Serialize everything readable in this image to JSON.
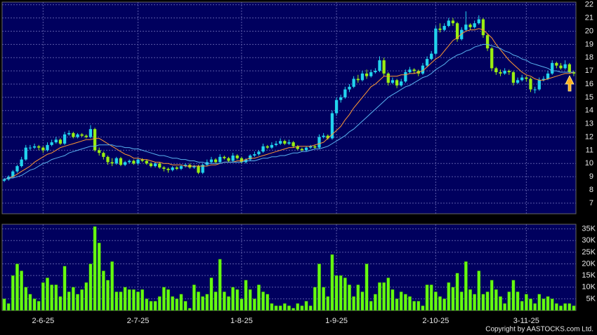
{
  "chart_data": {
    "type": "candlestick",
    "categories": [
      null,
      null,
      null,
      null,
      null,
      null,
      null,
      null,
      null,
      "2-6-25",
      null,
      null,
      null,
      null,
      null,
      null,
      null,
      null,
      null,
      null,
      null,
      null,
      null,
      null,
      null,
      null,
      null,
      null,
      null,
      null,
      null,
      "2-7-25",
      null,
      null,
      null,
      null,
      null,
      null,
      null,
      null,
      null,
      null,
      null,
      null,
      null,
      null,
      null,
      null,
      null,
      null,
      null,
      null,
      null,
      null,
      null,
      "1-8-25",
      null,
      null,
      null,
      null,
      null,
      null,
      null,
      null,
      null,
      null,
      null,
      null,
      null,
      null,
      null,
      null,
      null,
      null,
      null,
      null,
      null,
      "1-9-25",
      null,
      null,
      null,
      null,
      null,
      null,
      null,
      null,
      null,
      null,
      null,
      null,
      null,
      null,
      null,
      null,
      null,
      null,
      null,
      null,
      null,
      null,
      "2-10-25",
      null,
      null,
      null,
      null,
      null,
      null,
      null,
      null,
      null,
      null,
      null,
      null,
      null,
      null,
      null,
      null,
      null,
      null,
      null,
      null,
      "3-11-25",
      null,
      null,
      null,
      null,
      null,
      null,
      null,
      null,
      null,
      null,
      null
    ],
    "candles": [
      [
        8.7,
        8.9,
        8.6,
        8.8,
        5000,
        8.8,
        8.8
      ],
      [
        8.8,
        9.1,
        8.7,
        9.0,
        3000,
        8.9,
        8.9
      ],
      [
        9.0,
        9.5,
        8.9,
        9.4,
        15000,
        9.0,
        8.9
      ],
      [
        9.4,
        9.9,
        9.3,
        9.8,
        20000,
        9.2,
        9.0
      ],
      [
        9.8,
        10.5,
        9.7,
        10.3,
        17000,
        9.4,
        9.1
      ],
      [
        10.3,
        11.4,
        10.2,
        11.2,
        10000,
        9.6,
        9.3
      ],
      [
        11.2,
        11.4,
        11.0,
        11.2,
        7000,
        9.8,
        9.5
      ],
      [
        11.2,
        11.5,
        11.1,
        11.3,
        5000,
        10.1,
        9.6
      ],
      [
        11.3,
        11.4,
        11.0,
        11.2,
        4000,
        10.3,
        9.8
      ],
      [
        11.2,
        11.3,
        10.8,
        11.0,
        12000,
        10.5,
        10.0
      ],
      [
        11.0,
        11.6,
        10.9,
        11.4,
        14000,
        10.7,
        10.1
      ],
      [
        11.4,
        11.8,
        11.3,
        11.6,
        11000,
        10.8,
        10.3
      ],
      [
        11.6,
        12.0,
        11.5,
        11.8,
        11000,
        11.0,
        10.4
      ],
      [
        11.8,
        11.9,
        11.4,
        11.5,
        6000,
        11.2,
        10.5
      ],
      [
        11.5,
        12.4,
        11.4,
        12.2,
        19000,
        11.3,
        10.6
      ],
      [
        12.2,
        12.5,
        12.1,
        12.3,
        8000,
        11.4,
        10.8
      ],
      [
        12.3,
        12.4,
        11.9,
        12.0,
        10000,
        11.5,
        10.9
      ],
      [
        12.0,
        12.3,
        11.9,
        12.2,
        7000,
        11.6,
        11.0
      ],
      [
        12.2,
        12.3,
        12.0,
        12.1,
        9000,
        11.7,
        11.1
      ],
      [
        12.1,
        12.2,
        11.9,
        12.0,
        12000,
        11.8,
        11.2
      ],
      [
        12.0,
        12.9,
        11.9,
        12.6,
        20000,
        11.8,
        11.3
      ],
      [
        12.6,
        12.7,
        10.9,
        11.0,
        36000,
        11.9,
        11.3
      ],
      [
        11.0,
        11.2,
        10.6,
        10.8,
        29000,
        11.9,
        11.4
      ],
      [
        10.8,
        10.9,
        10.3,
        10.5,
        17000,
        11.7,
        11.4
      ],
      [
        10.5,
        10.6,
        9.9,
        10.1,
        13000,
        11.5,
        11.4
      ],
      [
        10.1,
        10.4,
        9.8,
        10.0,
        21000,
        11.3,
        11.4
      ],
      [
        10.0,
        10.5,
        9.9,
        10.4,
        8000,
        11.1,
        11.3
      ],
      [
        10.4,
        10.5,
        9.8,
        9.9,
        8000,
        10.9,
        11.3
      ],
      [
        9.9,
        10.2,
        9.8,
        10.1,
        10000,
        10.7,
        11.2
      ],
      [
        10.1,
        10.3,
        10.0,
        10.2,
        9000,
        10.6,
        11.2
      ],
      [
        10.2,
        10.3,
        9.9,
        10.0,
        9000,
        10.4,
        11.1
      ],
      [
        10.0,
        10.4,
        9.9,
        10.3,
        8000,
        10.4,
        11.1
      ],
      [
        10.3,
        10.4,
        10.1,
        10.2,
        9000,
        10.3,
        11.0
      ],
      [
        10.2,
        10.3,
        9.9,
        10.0,
        5000,
        10.3,
        10.9
      ],
      [
        10.0,
        10.1,
        9.7,
        9.8,
        4000,
        10.2,
        10.8
      ],
      [
        9.8,
        10.1,
        9.7,
        10.0,
        4000,
        10.1,
        10.7
      ],
      [
        10.0,
        10.1,
        9.6,
        9.7,
        6000,
        10.1,
        10.6
      ],
      [
        9.7,
        9.8,
        9.4,
        9.6,
        10000,
        10.0,
        10.6
      ],
      [
        9.6,
        9.7,
        9.3,
        9.5,
        9000,
        10.0,
        10.5
      ],
      [
        9.5,
        9.8,
        9.4,
        9.7,
        6000,
        9.9,
        10.4
      ],
      [
        9.7,
        9.8,
        9.5,
        9.6,
        5000,
        9.9,
        10.4
      ],
      [
        9.6,
        9.9,
        9.5,
        9.8,
        7000,
        9.9,
        10.3
      ],
      [
        9.8,
        10.0,
        9.7,
        9.9,
        4000,
        9.8,
        10.3
      ],
      [
        9.9,
        10.0,
        9.6,
        9.7,
        1000,
        9.8,
        10.2
      ],
      [
        9.7,
        9.9,
        9.6,
        9.8,
        11000,
        9.8,
        10.2
      ],
      [
        9.8,
        9.9,
        9.2,
        9.3,
        8000,
        9.8,
        10.1
      ],
      [
        9.3,
        10.0,
        9.2,
        9.9,
        6000,
        9.8,
        10.1
      ],
      [
        9.9,
        10.3,
        9.8,
        10.1,
        7000,
        9.8,
        10.0
      ],
      [
        10.1,
        10.5,
        10.0,
        10.3,
        14000,
        9.9,
        10.0
      ],
      [
        10.3,
        10.4,
        10.0,
        10.1,
        8000,
        9.9,
        10.0
      ],
      [
        10.1,
        10.7,
        10.0,
        10.5,
        22000,
        10.0,
        10.0
      ],
      [
        10.5,
        10.6,
        10.3,
        10.4,
        8000,
        10.1,
        10.1
      ],
      [
        10.4,
        10.5,
        10.1,
        10.2,
        6000,
        10.1,
        10.1
      ],
      [
        10.2,
        10.8,
        10.1,
        10.6,
        10000,
        10.1,
        10.1
      ],
      [
        10.6,
        10.7,
        10.3,
        10.4,
        9000,
        10.2,
        10.1
      ],
      [
        10.4,
        10.5,
        10.0,
        10.1,
        5000,
        10.2,
        10.1
      ],
      [
        10.1,
        10.4,
        10.0,
        10.3,
        13000,
        10.3,
        10.2
      ],
      [
        10.3,
        10.7,
        10.2,
        10.6,
        9000,
        10.4,
        10.2
      ],
      [
        10.6,
        10.9,
        10.5,
        10.7,
        5000,
        10.4,
        10.2
      ],
      [
        10.7,
        11.0,
        10.6,
        10.9,
        11000,
        10.5,
        10.3
      ],
      [
        10.9,
        11.5,
        10.8,
        11.3,
        8000,
        10.6,
        10.4
      ],
      [
        11.3,
        11.4,
        11.1,
        11.2,
        7000,
        10.7,
        10.4
      ],
      [
        11.2,
        11.6,
        11.1,
        11.4,
        3000,
        10.8,
        10.5
      ],
      [
        11.4,
        11.7,
        11.3,
        11.5,
        2000,
        10.9,
        10.5
      ],
      [
        11.5,
        11.9,
        11.4,
        11.7,
        2000,
        11.0,
        10.6
      ],
      [
        11.7,
        11.8,
        11.4,
        11.5,
        3000,
        11.1,
        10.6
      ],
      [
        11.5,
        11.8,
        11.4,
        11.6,
        2000,
        11.2,
        10.7
      ],
      [
        11.6,
        11.7,
        11.2,
        11.3,
        1000,
        11.2,
        10.8
      ],
      [
        11.3,
        11.4,
        11.0,
        11.1,
        3000,
        11.3,
        10.8
      ],
      [
        11.1,
        11.2,
        10.9,
        11.0,
        2000,
        11.3,
        10.9
      ],
      [
        11.0,
        11.3,
        10.9,
        11.2,
        4000,
        11.3,
        10.9
      ],
      [
        11.2,
        11.4,
        11.1,
        11.3,
        2000,
        11.3,
        11.0
      ],
      [
        11.3,
        11.4,
        11.1,
        11.2,
        10000,
        11.4,
        11.1
      ],
      [
        11.2,
        12.2,
        11.1,
        12.0,
        20000,
        11.5,
        11.1
      ],
      [
        12.0,
        12.3,
        11.9,
        12.1,
        10000,
        11.6,
        11.2
      ],
      [
        12.1,
        12.2,
        11.8,
        11.9,
        6000,
        11.9,
        11.3
      ],
      [
        11.9,
        14.0,
        11.8,
        13.8,
        24000,
        12.2,
        11.5
      ],
      [
        13.8,
        15.0,
        13.6,
        14.8,
        15000,
        12.5,
        11.7
      ],
      [
        14.8,
        15.2,
        14.6,
        15.0,
        15000,
        12.8,
        11.9
      ],
      [
        15.0,
        15.8,
        14.9,
        15.6,
        14000,
        13.3,
        12.1
      ],
      [
        15.6,
        16.0,
        15.4,
        15.8,
        11000,
        13.7,
        12.4
      ],
      [
        15.8,
        16.6,
        15.7,
        16.4,
        6000,
        14.2,
        12.6
      ],
      [
        16.4,
        16.7,
        16.1,
        16.3,
        11000,
        14.6,
        12.9
      ],
      [
        16.3,
        17.0,
        16.2,
        16.8,
        8000,
        15.0,
        13.2
      ],
      [
        16.8,
        17.1,
        16.4,
        16.6,
        20000,
        15.4,
        13.5
      ],
      [
        16.6,
        17.1,
        16.5,
        16.9,
        4000,
        15.8,
        13.8
      ],
      [
        16.9,
        17.2,
        16.8,
        17.0,
        7000,
        16.0,
        14.1
      ],
      [
        17.0,
        18.1,
        16.9,
        17.8,
        12000,
        16.3,
        14.4
      ],
      [
        17.8,
        18.0,
        16.6,
        16.8,
        12000,
        16.6,
        14.7
      ],
      [
        16.8,
        16.9,
        15.9,
        16.1,
        14000,
        16.6,
        15.0
      ],
      [
        16.1,
        16.5,
        16.0,
        16.3,
        9000,
        16.6,
        15.2
      ],
      [
        16.3,
        16.4,
        15.7,
        15.9,
        5000,
        16.6,
        15.4
      ],
      [
        15.9,
        16.4,
        15.8,
        16.2,
        8000,
        16.7,
        15.6
      ],
      [
        16.2,
        17.1,
        16.1,
        16.9,
        7000,
        16.7,
        15.8
      ],
      [
        16.9,
        17.3,
        16.8,
        17.1,
        6000,
        16.8,
        15.9
      ],
      [
        17.1,
        17.2,
        16.8,
        17.0,
        4000,
        16.8,
        16.1
      ],
      [
        17.0,
        17.1,
        16.6,
        16.8,
        4000,
        16.9,
        16.3
      ],
      [
        16.8,
        17.6,
        16.7,
        17.4,
        2000,
        17.0,
        16.5
      ],
      [
        17.4,
        18.1,
        17.3,
        17.9,
        11000,
        17.3,
        16.6
      ],
      [
        17.9,
        18.5,
        17.8,
        18.3,
        11000,
        17.6,
        16.8
      ],
      [
        18.3,
        20.4,
        18.2,
        20.2,
        8000,
        17.9,
        17.1
      ],
      [
        20.2,
        20.6,
        19.9,
        20.1,
        6000,
        18.1,
        17.3
      ],
      [
        20.1,
        20.6,
        20.0,
        20.4,
        5000,
        18.5,
        17.5
      ],
      [
        20.4,
        21.0,
        20.3,
        20.8,
        12000,
        18.9,
        17.8
      ],
      [
        20.8,
        21.0,
        20.4,
        20.6,
        10000,
        19.3,
        18.0
      ],
      [
        20.6,
        20.7,
        19.2,
        19.4,
        16000,
        19.5,
        18.2
      ],
      [
        19.4,
        20.3,
        19.3,
        20.1,
        8000,
        19.8,
        18.3
      ],
      [
        20.1,
        21.5,
        20.0,
        20.5,
        21000,
        20.0,
        18.5
      ],
      [
        20.5,
        20.6,
        20.1,
        20.3,
        9000,
        20.1,
        18.6
      ],
      [
        20.3,
        20.8,
        20.2,
        20.6,
        7000,
        20.1,
        18.8
      ],
      [
        20.6,
        21.2,
        20.5,
        20.9,
        17000,
        20.2,
        18.9
      ],
      [
        20.9,
        21.0,
        19.5,
        19.7,
        7000,
        20.1,
        19.0
      ],
      [
        19.7,
        19.8,
        18.5,
        18.7,
        8000,
        19.8,
        19.0
      ],
      [
        18.7,
        18.8,
        17.0,
        17.2,
        13000,
        19.5,
        18.9
      ],
      [
        17.2,
        17.3,
        16.7,
        16.9,
        9000,
        19.0,
        18.8
      ],
      [
        16.9,
        17.1,
        16.6,
        16.8,
        6000,
        18.6,
        18.7
      ],
      [
        16.8,
        17.2,
        16.7,
        17.0,
        3000,
        18.2,
        18.5
      ],
      [
        17.0,
        17.1,
        16.7,
        16.9,
        8000,
        17.8,
        18.4
      ],
      [
        16.9,
        17.0,
        15.9,
        16.1,
        13000,
        17.5,
        18.2
      ],
      [
        16.1,
        16.5,
        16.0,
        16.3,
        8000,
        17.2,
        18.1
      ],
      [
        16.3,
        16.7,
        16.2,
        16.5,
        4000,
        16.9,
        17.9
      ],
      [
        16.5,
        16.6,
        16.2,
        16.4,
        7000,
        16.7,
        17.8
      ],
      [
        16.4,
        16.5,
        15.4,
        15.6,
        5000,
        16.6,
        17.6
      ],
      [
        15.6,
        15.8,
        15.3,
        15.6,
        3000,
        16.4,
        17.5
      ],
      [
        15.6,
        16.5,
        15.5,
        16.3,
        7000,
        16.3,
        17.4
      ],
      [
        16.3,
        16.6,
        16.2,
        16.4,
        5000,
        16.3,
        17.3
      ],
      [
        16.4,
        17.0,
        16.3,
        16.8,
        6000,
        16.4,
        17.2
      ],
      [
        16.8,
        17.8,
        16.7,
        17.6,
        5000,
        16.5,
        17.0
      ],
      [
        17.6,
        17.7,
        17.2,
        17.4,
        3000,
        16.6,
        17.0
      ],
      [
        17.4,
        17.6,
        17.1,
        17.2,
        2000,
        16.7,
        16.9
      ],
      [
        17.2,
        17.8,
        17.1,
        17.5,
        3000,
        16.8,
        16.9
      ],
      [
        17.5,
        17.6,
        16.8,
        16.9,
        3000,
        16.8,
        16.9
      ],
      [
        16.9,
        17.0,
        16.6,
        16.8,
        2000,
        16.9,
        16.9
      ]
    ],
    "ylim": [
      6.2,
      22.2
    ],
    "yticks": [
      7,
      8,
      9,
      10,
      11,
      12,
      13,
      14,
      15,
      16,
      17,
      18,
      19,
      20,
      21,
      22
    ],
    "y2lim": [
      0,
      37000
    ],
    "y2ticks": [
      {
        "value": 5000,
        "label": "5K"
      },
      {
        "value": 10000,
        "label": "10K"
      },
      {
        "value": 15000,
        "label": "15K"
      },
      {
        "value": 20000,
        "label": "20K"
      },
      {
        "value": 25000,
        "label": "25K"
      },
      {
        "value": 30000,
        "label": "30K"
      },
      {
        "value": 35000,
        "label": "35K"
      }
    ],
    "up_color": "#22d4ee",
    "down_color": "#99ee11",
    "volume_color": "#66ff11",
    "ma_colors": [
      "#ff9933",
      "#5ab4f0"
    ],
    "grid": true,
    "copyright": "Copyright by AASTOCKS.com Ltd."
  }
}
